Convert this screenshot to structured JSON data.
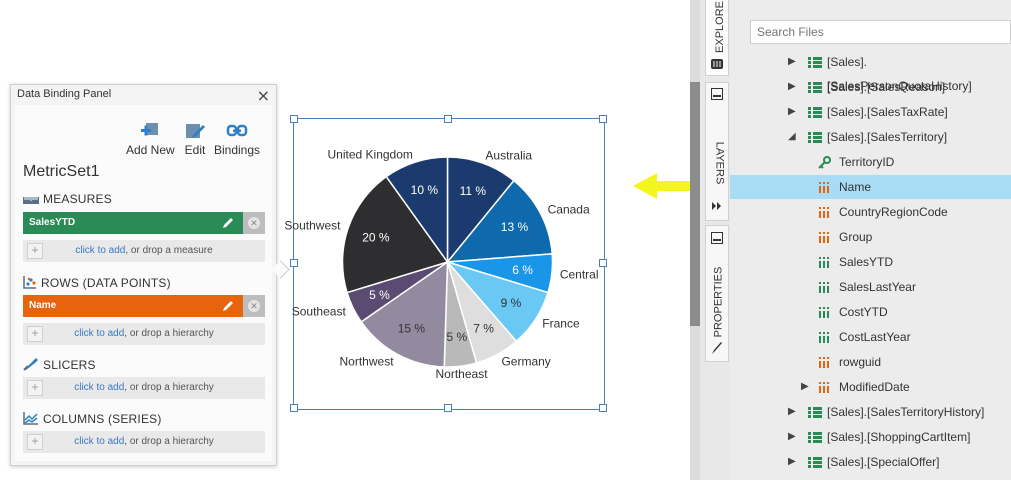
{
  "panel": {
    "title": "Data Binding Panel",
    "close": "×",
    "toolbar": {
      "add_new": "Add New",
      "edit": "Edit",
      "bindings": "Bindings"
    },
    "metric_set": "MetricSet1",
    "sections": {
      "measures": {
        "heading": "MEASURES",
        "bound_item": "SalesYTD",
        "bound_color": "#2a8b57",
        "drop_link": "click to add",
        "drop_text": ", or drop a measure"
      },
      "rows": {
        "heading": "ROWS (DATA POINTS)",
        "bound_item": "Name",
        "bound_color": "#e8630e",
        "drop_link": "click to add",
        "drop_text": ", or drop a hierarchy"
      },
      "slicers": {
        "heading": "SLICERS",
        "drop_link": "click to add",
        "drop_text": ", or drop a hierarchy"
      },
      "columns": {
        "heading": "COLUMNS (SERIES)",
        "drop_link": "click to add",
        "drop_text": ", or drop a hierarchy"
      }
    }
  },
  "chart_data": {
    "type": "pie",
    "categories": [
      "Australia",
      "Canada",
      "Central",
      "France",
      "Germany",
      "Northeast",
      "Northwest",
      "Southeast",
      "Southwest",
      "United Kingdom"
    ],
    "values": [
      11,
      13,
      6,
      9,
      7,
      5,
      15,
      5,
      20,
      10
    ],
    "labels": [
      "11 %",
      "13 %",
      "6 %",
      "9 %",
      "7 %",
      "5 %",
      "15 %",
      "5 %",
      "20 %",
      "10 %"
    ],
    "colors": [
      "#1b3b6e",
      "#0f6aad",
      "#1a96e8",
      "#6ac8f5",
      "#dedede",
      "#b9b9b9",
      "#948aa0",
      "#5b4b72",
      "#2e2e30",
      "#1b3b6e"
    ],
    "label_colors": [
      "#ffffff",
      "#ffffff",
      "#ffffff",
      "#333333",
      "#333333",
      "#333333",
      "#333333",
      "#ffffff",
      "#ffffff",
      "#ffffff"
    ]
  },
  "explorer": {
    "tabs": [
      "EXPLORE",
      "LAYERS",
      "PROPERTIES"
    ],
    "search_placeholder": "Search Files",
    "rows": [
      {
        "label": "[Sales].[SalesPersonQuotaHistory]",
        "kind": "table",
        "level": 0,
        "arrow": "▶"
      },
      {
        "label": "[Sales].[SalesReason]",
        "kind": "table",
        "level": 0,
        "arrow": "▶"
      },
      {
        "label": "[Sales].[SalesTaxRate]",
        "kind": "table",
        "level": 0,
        "arrow": "▶"
      },
      {
        "label": "[Sales].[SalesTerritory]",
        "kind": "table",
        "level": 0,
        "arrow": "◢"
      },
      {
        "label": "TerritoryID",
        "kind": "key",
        "level": 1
      },
      {
        "label": "Name",
        "kind": "dim",
        "level": 1,
        "selected": true
      },
      {
        "label": "CountryRegionCode",
        "kind": "dim",
        "level": 1
      },
      {
        "label": "Group",
        "kind": "dim",
        "level": 1
      },
      {
        "label": "SalesYTD",
        "kind": "measure",
        "level": 1
      },
      {
        "label": "SalesLastYear",
        "kind": "measure",
        "level": 1
      },
      {
        "label": "CostYTD",
        "kind": "measure",
        "level": 1
      },
      {
        "label": "CostLastYear",
        "kind": "measure",
        "level": 1
      },
      {
        "label": "rowguid",
        "kind": "dim",
        "level": 1
      },
      {
        "label": "ModifiedDate",
        "kind": "dim",
        "level": 1,
        "arrow": "▶"
      },
      {
        "label": "[Sales].[SalesTerritoryHistory]",
        "kind": "table",
        "level": 0,
        "arrow": "▶"
      },
      {
        "label": "[Sales].[ShoppingCartItem]",
        "kind": "table",
        "level": 0,
        "arrow": "▶"
      },
      {
        "label": "[Sales].[SpecialOffer]",
        "kind": "table",
        "level": 0,
        "arrow": "▶"
      }
    ]
  },
  "colors": {
    "drag_arrow": "#f5f51e",
    "selection": "#a8dcf5",
    "link": "#3a78c3"
  }
}
